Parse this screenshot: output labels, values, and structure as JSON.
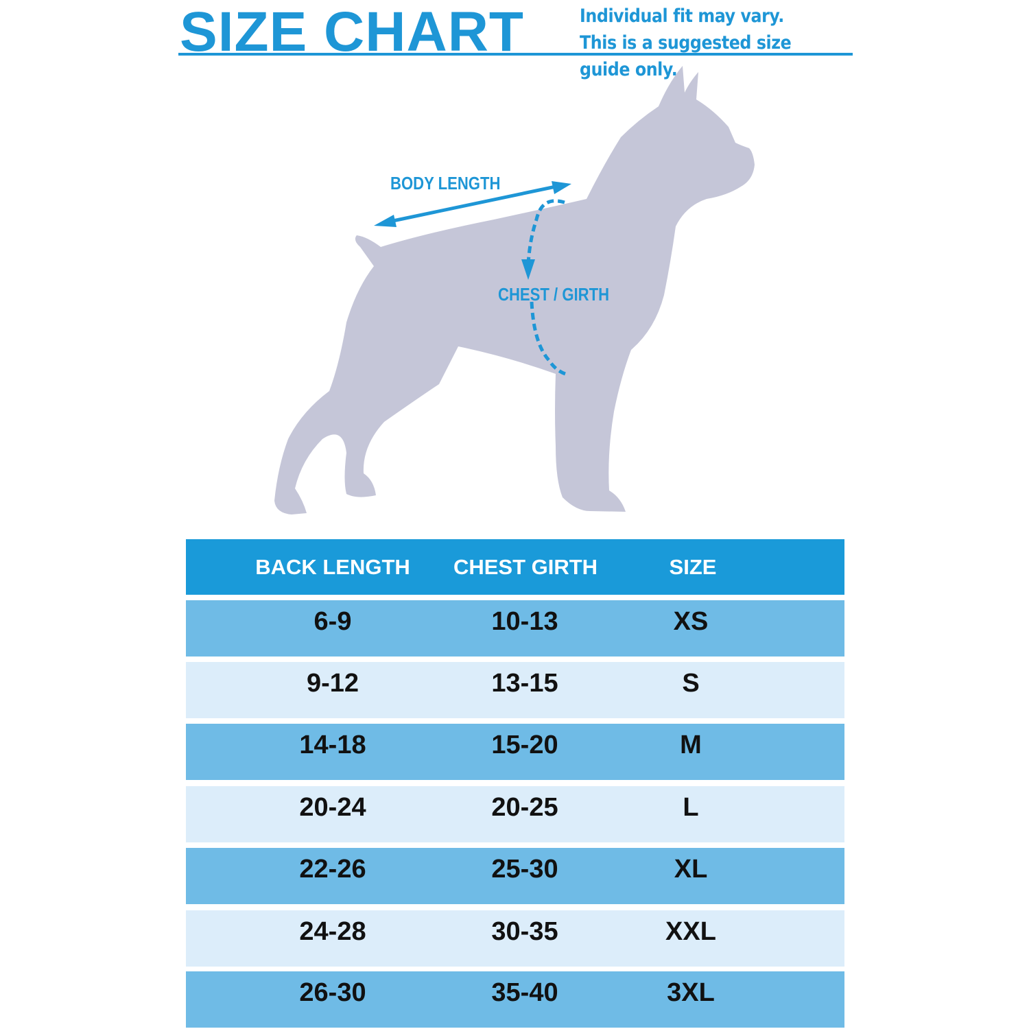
{
  "header": {
    "title": "SIZE CHART",
    "note": "Individual fit may vary. This is a suggested size guide only."
  },
  "diagram": {
    "body_length_label": "BODY LENGTH",
    "chest_girth_label": "CHEST / GIRTH"
  },
  "colors": {
    "accent": "#1e96d6",
    "header_row": "#1a9ad9",
    "row_dark": "#6fbbe6",
    "row_light": "#dcedfa",
    "silhouette": "#c5c6d8"
  },
  "table": {
    "columns": [
      "BACK LENGTH",
      "CHEST GIRTH",
      "SIZE"
    ],
    "rows": [
      [
        "6-9",
        "10-13",
        "XS"
      ],
      [
        "9-12",
        "13-15",
        "S"
      ],
      [
        "14-18",
        "15-20",
        "M"
      ],
      [
        "20-24",
        "20-25",
        "L"
      ],
      [
        "22-26",
        "25-30",
        "XL"
      ],
      [
        "24-28",
        "30-35",
        "XXL"
      ],
      [
        "26-30",
        "35-40",
        "3XL"
      ]
    ]
  }
}
